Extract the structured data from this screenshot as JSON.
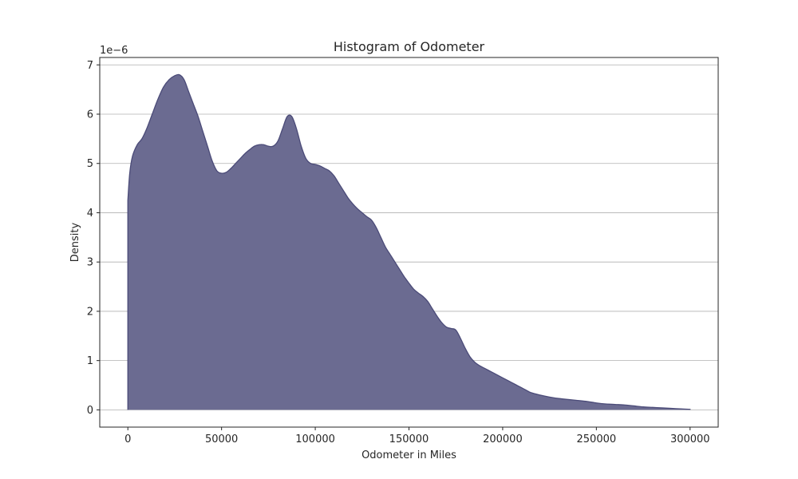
{
  "chart_data": {
    "type": "area",
    "title": "Histogram of Odometer",
    "xlabel": "Odometer in Miles",
    "ylabel": "Density",
    "y_multiplier_label": "1e−6",
    "y_scale": 1e-06,
    "xlim": [
      -15000,
      315000
    ],
    "ylim": [
      -0.35,
      7.15
    ],
    "x_ticks": [
      0,
      50000,
      100000,
      150000,
      200000,
      250000,
      300000
    ],
    "x_tick_labels": [
      "0",
      "50000",
      "100000",
      "150000",
      "200000",
      "250000",
      "300000"
    ],
    "y_ticks": [
      0,
      1,
      2,
      3,
      4,
      5,
      6,
      7
    ],
    "y_tick_labels": [
      "0",
      "1",
      "2",
      "3",
      "4",
      "5",
      "6",
      "7"
    ],
    "grid": "horizontal",
    "fill_color": "#6b6b91",
    "line_color": "#4b4b78",
    "series": [
      {
        "x": [
          0,
          1000,
          2500,
          5000,
          7500,
          10000,
          13000,
          16000,
          19000,
          22000,
          25000,
          27500,
          30000,
          32500,
          35000,
          37500,
          40000,
          42500,
          45000,
          47500,
          50000,
          52500,
          55000,
          57500,
          60000,
          62500,
          65000,
          67500,
          70000,
          72500,
          75000,
          77500,
          80000,
          82500,
          85000,
          87500,
          90000,
          92500,
          95000,
          97500,
          100000,
          102500,
          105000,
          107500,
          110000,
          112500,
          115000,
          117500,
          120000,
          122500,
          125000,
          127500,
          130000,
          132500,
          135000,
          137500,
          140000,
          142500,
          145000,
          147500,
          150000,
          152500,
          155000,
          157500,
          160000,
          162500,
          165000,
          167500,
          170000,
          172500,
          175000,
          177500,
          180000,
          182500,
          185000,
          187500,
          190000,
          192500,
          195000,
          197500,
          200000,
          202500,
          205000,
          207500,
          210000,
          212500,
          215000,
          220000,
          225000,
          230000,
          235000,
          240000,
          245000,
          250000,
          255000,
          260000,
          265000,
          270000,
          275000,
          280000,
          285000,
          290000,
          295000,
          300000
        ],
        "y": [
          4.25,
          4.8,
          5.15,
          5.38,
          5.5,
          5.7,
          6.0,
          6.3,
          6.55,
          6.7,
          6.78,
          6.8,
          6.7,
          6.45,
          6.2,
          5.95,
          5.65,
          5.35,
          5.05,
          4.85,
          4.8,
          4.82,
          4.9,
          5.0,
          5.1,
          5.2,
          5.28,
          5.35,
          5.38,
          5.38,
          5.35,
          5.35,
          5.45,
          5.7,
          5.95,
          5.95,
          5.7,
          5.35,
          5.1,
          5.0,
          4.98,
          4.95,
          4.9,
          4.85,
          4.75,
          4.6,
          4.45,
          4.3,
          4.18,
          4.08,
          4.0,
          3.92,
          3.85,
          3.7,
          3.5,
          3.3,
          3.15,
          3.0,
          2.85,
          2.7,
          2.57,
          2.45,
          2.37,
          2.3,
          2.2,
          2.05,
          1.9,
          1.77,
          1.68,
          1.65,
          1.62,
          1.45,
          1.25,
          1.08,
          0.97,
          0.9,
          0.85,
          0.8,
          0.75,
          0.7,
          0.65,
          0.6,
          0.55,
          0.5,
          0.45,
          0.4,
          0.35,
          0.3,
          0.26,
          0.23,
          0.21,
          0.19,
          0.17,
          0.14,
          0.12,
          0.11,
          0.1,
          0.08,
          0.06,
          0.05,
          0.04,
          0.03,
          0.02,
          0.01
        ]
      }
    ]
  }
}
